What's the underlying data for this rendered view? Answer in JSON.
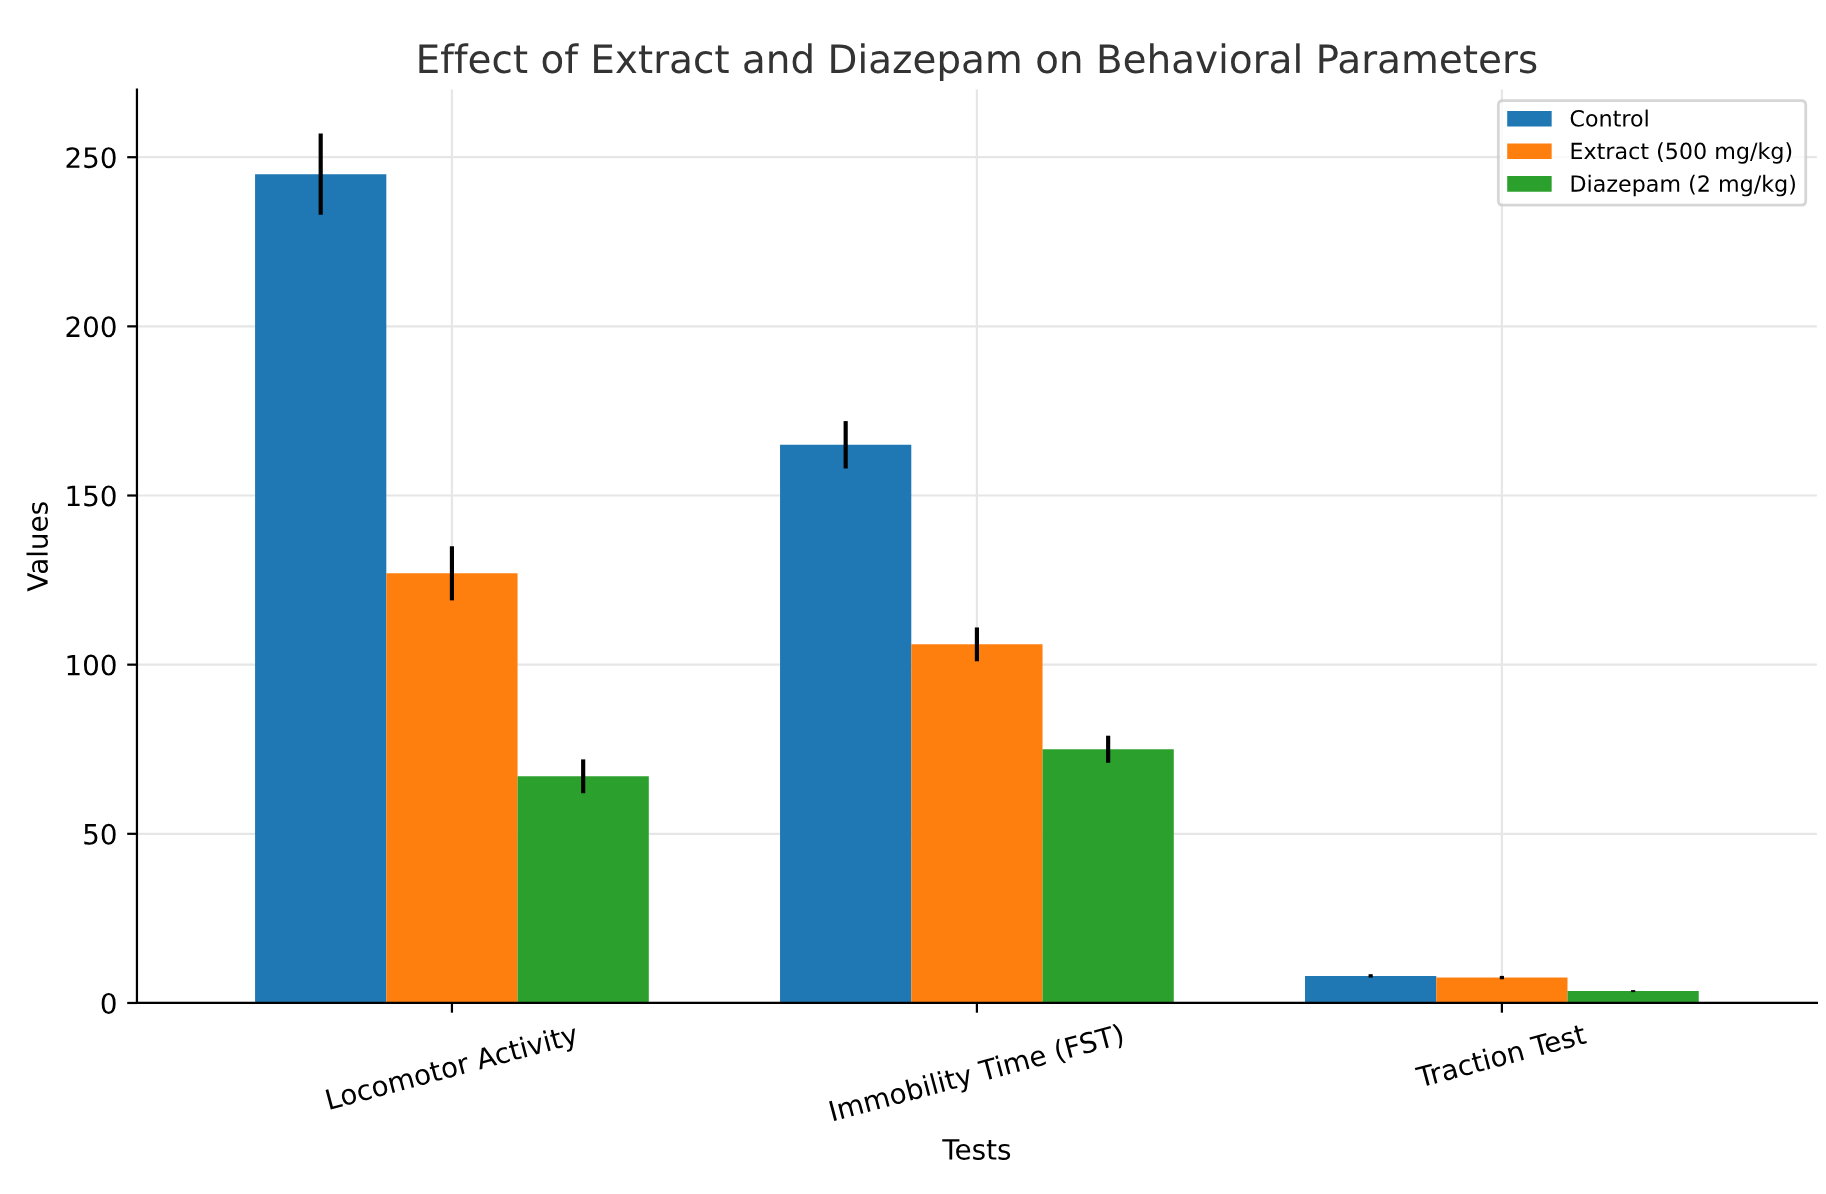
{
  "chart_data": {
    "type": "bar",
    "title": "Effect of Extract and Diazepam on Behavioral Parameters",
    "xlabel": "Tests",
    "ylabel": "Values",
    "categories": [
      "Locomotor Activity",
      "Immobility Time (FST)",
      "Traction Test"
    ],
    "series": [
      {
        "name": "Control",
        "color": "#1f77b4",
        "values": [
          245,
          165,
          8
        ],
        "errors": [
          12,
          7,
          0.5
        ]
      },
      {
        "name": "Extract (500 mg/kg)",
        "color": "#ff7f0e",
        "values": [
          127,
          106,
          7.5
        ],
        "errors": [
          8,
          5,
          0.5
        ]
      },
      {
        "name": "Diazepam (2 mg/kg)",
        "color": "#2ca02c",
        "values": [
          67,
          75,
          3.5
        ],
        "errors": [
          5,
          4,
          0.3
        ]
      }
    ],
    "ylim": [
      0,
      270
    ],
    "yticks": [
      0,
      50,
      100,
      150,
      200,
      250
    ],
    "grid": true,
    "legend": "top right"
  }
}
